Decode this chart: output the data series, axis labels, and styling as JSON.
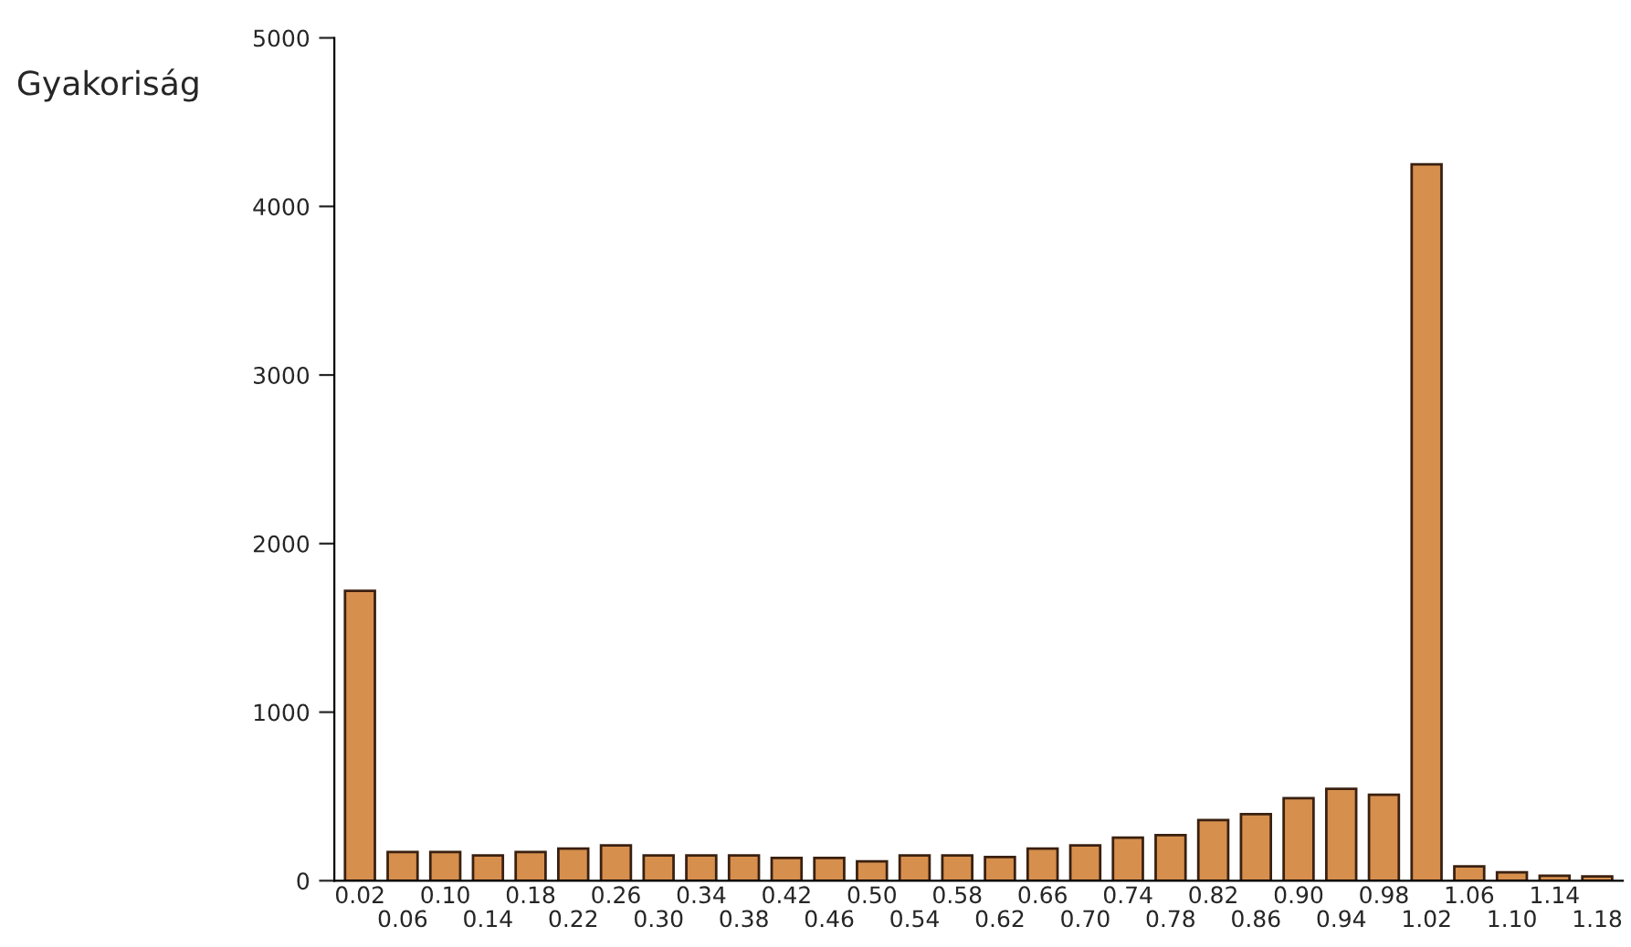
{
  "chart_data": {
    "type": "bar",
    "ylabel": "Gyakoriság",
    "categories": [
      "0.02",
      "0.06",
      "0.10",
      "0.14",
      "0.18",
      "0.22",
      "0.26",
      "0.30",
      "0.34",
      "0.38",
      "0.42",
      "0.46",
      "0.50",
      "0.54",
      "0.58",
      "0.62",
      "0.66",
      "0.70",
      "0.74",
      "0.78",
      "0.82",
      "0.86",
      "0.90",
      "0.94",
      "0.98",
      "1.02",
      "1.06",
      "1.10",
      "1.14",
      "1.18"
    ],
    "values": [
      1720,
      170,
      170,
      150,
      170,
      190,
      210,
      150,
      150,
      150,
      135,
      135,
      115,
      150,
      150,
      140,
      190,
      210,
      255,
      270,
      360,
      395,
      490,
      545,
      510,
      4250,
      85,
      50,
      30,
      25
    ],
    "color": "#d68f4d",
    "ylim": [
      0,
      5000
    ],
    "yticks": [
      0,
      1000,
      2000,
      3000,
      4000,
      5000
    ],
    "grid": false,
    "legend": false
  }
}
